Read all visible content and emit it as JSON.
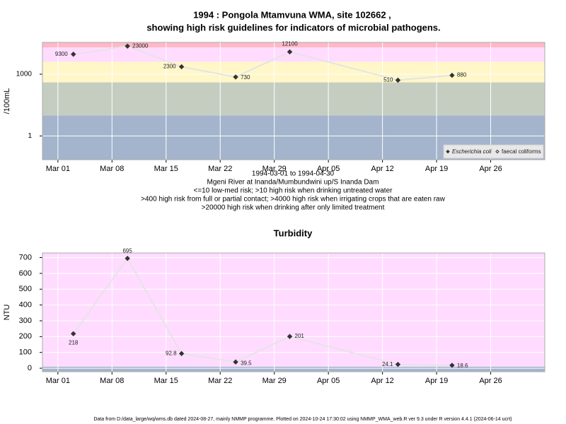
{
  "chart_data": [
    {
      "type": "line",
      "title": [
        "1994 : Pongola Mtamvuna WMA, site 102662 ,",
        "showing high risk guidelines for indicators of microbial pathogens."
      ],
      "y_label": "/100mL",
      "notes": [
        "1994-03-01 to 1994-04-30",
        "Mgeni River at Inanda/Mumbundwini up/S Inanda Dam",
        "<=10 low-med risk; >10 high risk when drinking untreated water",
        ">400 high risk from full or partial contact; >4000 high risk when irrigating crops that are eaten raw",
        ">20000 high risk when drinking after only limited treatment"
      ],
      "x": [
        "1994-03-03",
        "1994-03-10",
        "1994-03-17",
        "1994-03-24",
        "1994-03-31",
        "1994-04-14",
        "1994-04-21"
      ],
      "series": [
        {
          "name": "Escherichia coli",
          "color": "#333333",
          "values": [
            9300,
            23000,
            2300,
            730,
            12100,
            510,
            880
          ]
        },
        {
          "name": "faecal coliforms",
          "color": "#333333",
          "values": [
            null,
            null,
            null,
            null,
            null,
            null,
            null
          ]
        }
      ],
      "xlim": [
        "1994-02-27",
        "1994-05-03"
      ],
      "xticks": [
        {
          "value": "1994-03-01",
          "label": "Mar 01"
        },
        {
          "value": "1994-03-08",
          "label": "Mar 08"
        },
        {
          "value": "1994-03-15",
          "label": "Mar 15"
        },
        {
          "value": "1994-03-22",
          "label": "Mar 22"
        },
        {
          "value": "1994-03-29",
          "label": "Mar 29"
        },
        {
          "value": "1994-04-05",
          "label": "Apr 05"
        },
        {
          "value": "1994-04-12",
          "label": "Apr 12"
        },
        {
          "value": "1994-04-19",
          "label": "Apr 19"
        },
        {
          "value": "1994-04-26",
          "label": "Apr 26"
        }
      ],
      "ylim": [
        0.07,
        35000
      ],
      "yticks": [
        1,
        1000
      ],
      "log_y": true,
      "grid": true,
      "thresholds": [
        10,
        400,
        4000,
        20000
      ],
      "band_colors": [
        "#a3b4cc",
        "#c5cdc1",
        "#fff7c8",
        "#ffdcff",
        "#ffb8c8"
      ],
      "legend": "bottom-right"
    },
    {
      "type": "line",
      "title": "Turbidity",
      "y_label": "NTU",
      "x": [
        "1994-03-03",
        "1994-03-10",
        "1994-03-17",
        "1994-03-24",
        "1994-03-31",
        "1994-04-14",
        "1994-04-21"
      ],
      "series": [
        {
          "name": "Turbidity",
          "color": "#333333",
          "values": [
            218,
            695,
            92.8,
            39.5,
            201,
            24.1,
            18.6
          ]
        }
      ],
      "xlim": [
        "1994-02-27",
        "1994-05-03"
      ],
      "xticks": [
        {
          "value": "1994-03-01",
          "label": "Mar 01"
        },
        {
          "value": "1994-03-08",
          "label": "Mar 08"
        },
        {
          "value": "1994-03-15",
          "label": "Mar 15"
        },
        {
          "value": "1994-03-22",
          "label": "Mar 22"
        },
        {
          "value": "1994-03-29",
          "label": "Mar 29"
        },
        {
          "value": "1994-04-05",
          "label": "Apr 05"
        },
        {
          "value": "1994-04-12",
          "label": "Apr 12"
        },
        {
          "value": "1994-04-19",
          "label": "Apr 19"
        },
        {
          "value": "1994-04-26",
          "label": "Apr 26"
        }
      ],
      "ylim": [
        -22,
        729
      ],
      "yticks": [
        0,
        100,
        200,
        300,
        400,
        500,
        600,
        700
      ],
      "log_y": false,
      "grid": true,
      "thresholds": [
        10
      ],
      "band_colors": [
        "#a3b4cc",
        "#ffdcff"
      ]
    }
  ],
  "footer": "Data from D:/data_large/wq/wms.db dated 2024-08-27, mainly NMMP programme. Plotted on 2024-10-24 17:30:02 using NMMP_WMA_web.R ver 9.3 under R version 4.4.1 (2024-06-14 ucrt)"
}
